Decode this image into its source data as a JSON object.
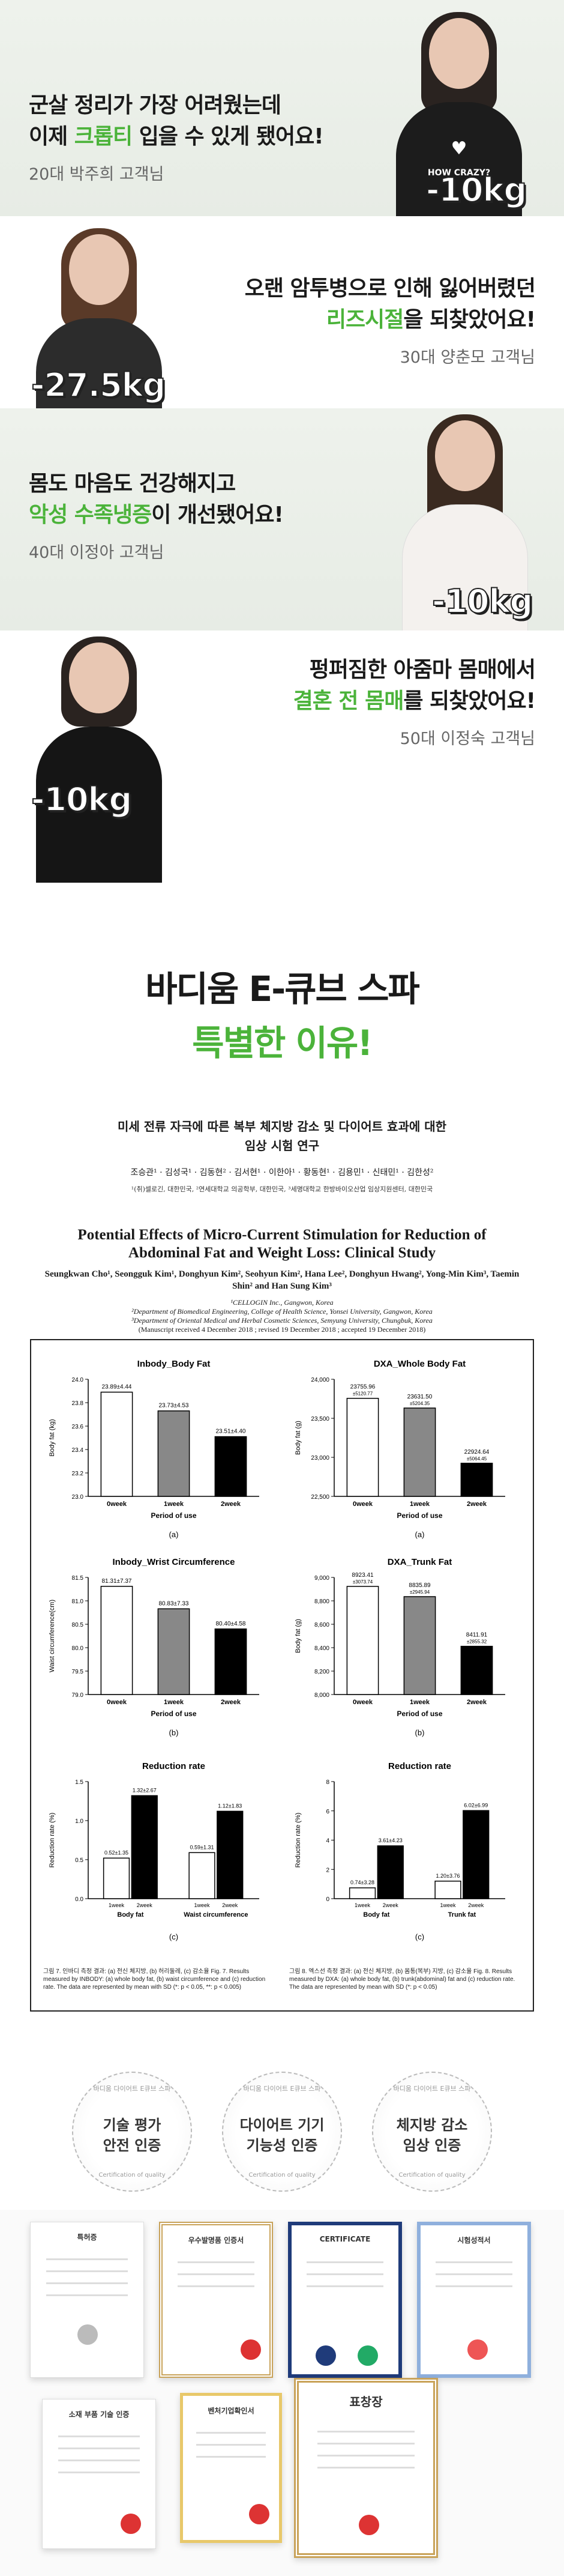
{
  "reviews": [
    {
      "line1": "군살 정리가 가장 어려웠는데",
      "line2_pre": "이제 ",
      "line2_hl": "크롭티",
      "line2_post": " 입을 수 있게 됐어요!",
      "name": "20대 박주희 고객님",
      "kg": "-10kg"
    },
    {
      "line1": "오랜 암투병으로 인해 잃어버렸던",
      "line2_pre": "",
      "line2_hl": "리즈시절",
      "line2_post": "을 되찾았어요!",
      "name": "30대 양춘모 고객님",
      "kg": "-27.5kg"
    },
    {
      "line1": "몸도 마음도 건강해지고",
      "line2_pre": "",
      "line2_hl": "악성 수족냉증",
      "line2_post": "이 개선됐어요!",
      "name": "40대 이정아 고객님",
      "kg": "-10kg"
    },
    {
      "line1": "펑퍼짐한 아줌마 몸매에서",
      "line2_pre": "",
      "line2_hl": "결혼 전 몸매",
      "line2_post": "를 되찾았어요!",
      "name": "50대 이정숙 고객님",
      "kg": "-10kg"
    }
  ],
  "tshirt_text": "HOW CRAZY?",
  "section_title": "바디움 E-큐브 스파",
  "section_title_green": "특별한 이유!",
  "paper": {
    "kr_title_1": "미세 전류 자극에 따른 복부 체지방 감소 및 다이어트 효과에 대한",
    "kr_title_2": "임상 시험 연구",
    "kr_authors": "조승관¹ · 김성국¹ · 김동현² · 김서현¹ · 이한아¹ · 황동현¹ · 김용민¹ · 신태민¹ · 김한성²",
    "kr_aff": "¹(취)셀로긴, 대한민국, ²연세대학교 의공학부, 대한민국, ³세명대학교 한방바이오산업 임상지원센터, 대한민국",
    "en_title": "Potential Effects of Micro-Current Stimulation for Reduction of Abdominal Fat and Weight Loss: Clinical Study",
    "en_authors": "Seungkwan Cho¹, Seongguk Kim¹, Donghyun Kim², Seohyun Kim², Hana Lee², Donghyun Hwang², Yong-Min Kim³, Taemin Shin² and Han Sung Kim³",
    "en_aff_1": "¹CELLOGIN Inc., Gangwon, Korea",
    "en_aff_2": "²Department of Biomedical Engineering, College of Health Science, Yonsei University, Gangwon, Korea",
    "en_aff_3": "³Department of Oriental Medical and Herbal Cosmetic Sciences, Semyung University, Chungbuk, Korea",
    "en_received": "(Manuscript received 4 December 2018 ; revised 19 December 2018 ; accepted 19 December 2018)"
  },
  "chart_data": [
    {
      "type": "bar",
      "title": "Inbody_Body Fat",
      "ylabel": "Body fat (kg)",
      "xlabel": "Period of use",
      "categories": [
        "0week",
        "1week",
        "2week"
      ],
      "values": [
        23.89,
        23.73,
        23.51
      ],
      "data_labels": [
        "23.89±4.44",
        "23.73±4.53",
        "23.51±4.40"
      ],
      "ylim": [
        23.0,
        24.0
      ],
      "yticks": [
        "23.0",
        "23.2",
        "23.4",
        "23.6",
        "23.8",
        "24.0"
      ],
      "panel": "(a)",
      "fills": [
        "#ffffff",
        "#888888",
        "#000000"
      ]
    },
    {
      "type": "bar",
      "title": "DXA_Whole Body Fat",
      "ylabel": "Body fat (g)",
      "xlabel": "Period of use",
      "categories": [
        "0week",
        "1week",
        "2week"
      ],
      "values": [
        23755.96,
        23631.5,
        22924.64
      ],
      "data_labels": [
        "23755.96",
        "23631.50",
        "22924.64"
      ],
      "data_sublabels": [
        "±5120.77",
        "±5204.35",
        "±5064.45"
      ],
      "ylim": [
        22500,
        24000
      ],
      "yticks": [
        "22,500",
        "23,000",
        "23,500",
        "24,000"
      ],
      "panel": "(a)",
      "fills": [
        "#ffffff",
        "#888888",
        "#000000"
      ]
    },
    {
      "type": "bar",
      "title": "Inbody_Wrist Circumference",
      "ylabel": "Waist circumference(cm)",
      "xlabel": "Period of use",
      "categories": [
        "0week",
        "1week",
        "2week"
      ],
      "values": [
        81.31,
        80.83,
        80.4
      ],
      "data_labels": [
        "81.31±7.37",
        "80.83±7.33",
        "80.40±4.58"
      ],
      "ylim": [
        79.0,
        81.5
      ],
      "yticks": [
        "79.0",
        "79.5",
        "80.0",
        "80.5",
        "81.0",
        "81.5"
      ],
      "panel": "(b)",
      "fills": [
        "#ffffff",
        "#888888",
        "#000000"
      ]
    },
    {
      "type": "bar",
      "title": "DXA_Trunk Fat",
      "ylabel": "Body fat (g)",
      "xlabel": "Period of use",
      "categories": [
        "0week",
        "1week",
        "2week"
      ],
      "values": [
        8923.41,
        8835.89,
        8411.91
      ],
      "data_labels": [
        "8923.41",
        "8835.89",
        "8411.91"
      ],
      "data_sublabels": [
        "±3073.74",
        "±2945.94",
        "±2855.32"
      ],
      "ylim": [
        8000,
        9000
      ],
      "yticks": [
        "8,000",
        "8,200",
        "8,400",
        "8,600",
        "8,800",
        "9,000"
      ],
      "panel": "(b)",
      "fills": [
        "#ffffff",
        "#888888",
        "#000000"
      ]
    },
    {
      "type": "bar",
      "title": "Reduction rate",
      "ylabel": "Reduction rate (%)",
      "categories": [
        "Body fat",
        "Waist circumference"
      ],
      "series": [
        {
          "name": "1week",
          "values": [
            0.52,
            0.59
          ]
        },
        {
          "name": "2week",
          "values": [
            1.32,
            1.12
          ]
        }
      ],
      "data_labels": [
        [
          "0.52±1.35",
          "0.59±1.31"
        ],
        [
          "1.32±2.67",
          "1.12±1.83"
        ]
      ],
      "ylim": [
        0.0,
        1.5
      ],
      "yticks": [
        "0.0",
        "0.5",
        "1.0",
        "1.5"
      ],
      "panel": "(c)"
    },
    {
      "type": "bar",
      "title": "Reduction rate",
      "ylabel": "Reduction rate (%)",
      "categories": [
        "Body fat",
        "Trunk fat"
      ],
      "series": [
        {
          "name": "1week",
          "values": [
            0.74,
            1.2
          ]
        },
        {
          "name": "2week",
          "values": [
            3.61,
            6.02
          ]
        }
      ],
      "data_labels": [
        [
          "0.74±3.28",
          "1.20±3.76"
        ],
        [
          "3.61±4.23",
          "6.02±6.99"
        ]
      ],
      "ylim": [
        0,
        8
      ],
      "yticks": [
        "0",
        "2",
        "4",
        "6",
        "8"
      ],
      "panel": "(c)"
    }
  ],
  "captions": {
    "left": "그림 7. 인바디 측정 결과: (a) 전신 체지방, (b) 허리둘레, (c) 감소율 Fig. 7. Results measured by INBODY: (a) whole body fat, (b) waist circumference and (c) reduction rate. The data are represented by mean with SD (*: p < 0.05, **: p < 0.005)",
    "right": "그림 8. 엑스선 측정 결과: (a) 전신 체지방, (b) 몸통(복부) 지방, (c) 감소율 Fig. 8. Results measured by DXA: (a) whole body fat, (b) trunk(abdominal) fat and (c) reduction rate. The data are represented by mean with SD (*: p < 0.05)"
  },
  "badges": [
    {
      "ring": "바디움 다이어트 E큐브 스파",
      "ring2": "Certification of quality",
      "line1": "기술 평가",
      "line2": "안전 인증"
    },
    {
      "ring": "바디움 다이어트 E큐브 스파",
      "ring2": "Certification of quality",
      "line1": "다이어트 기기",
      "line2": "기능성 인증"
    },
    {
      "ring": "바디움 다이어트 E큐브 스파",
      "ring2": "Certification of quality",
      "line1": "체지방 감소",
      "line2": "임상 인증"
    }
  ],
  "certificates": [
    "특허증",
    "우수발명품 인증서",
    "CERTIFICATE",
    "시험성적서",
    "소재 부품 기술 인증",
    "벤처기업확인서",
    "표창장"
  ]
}
